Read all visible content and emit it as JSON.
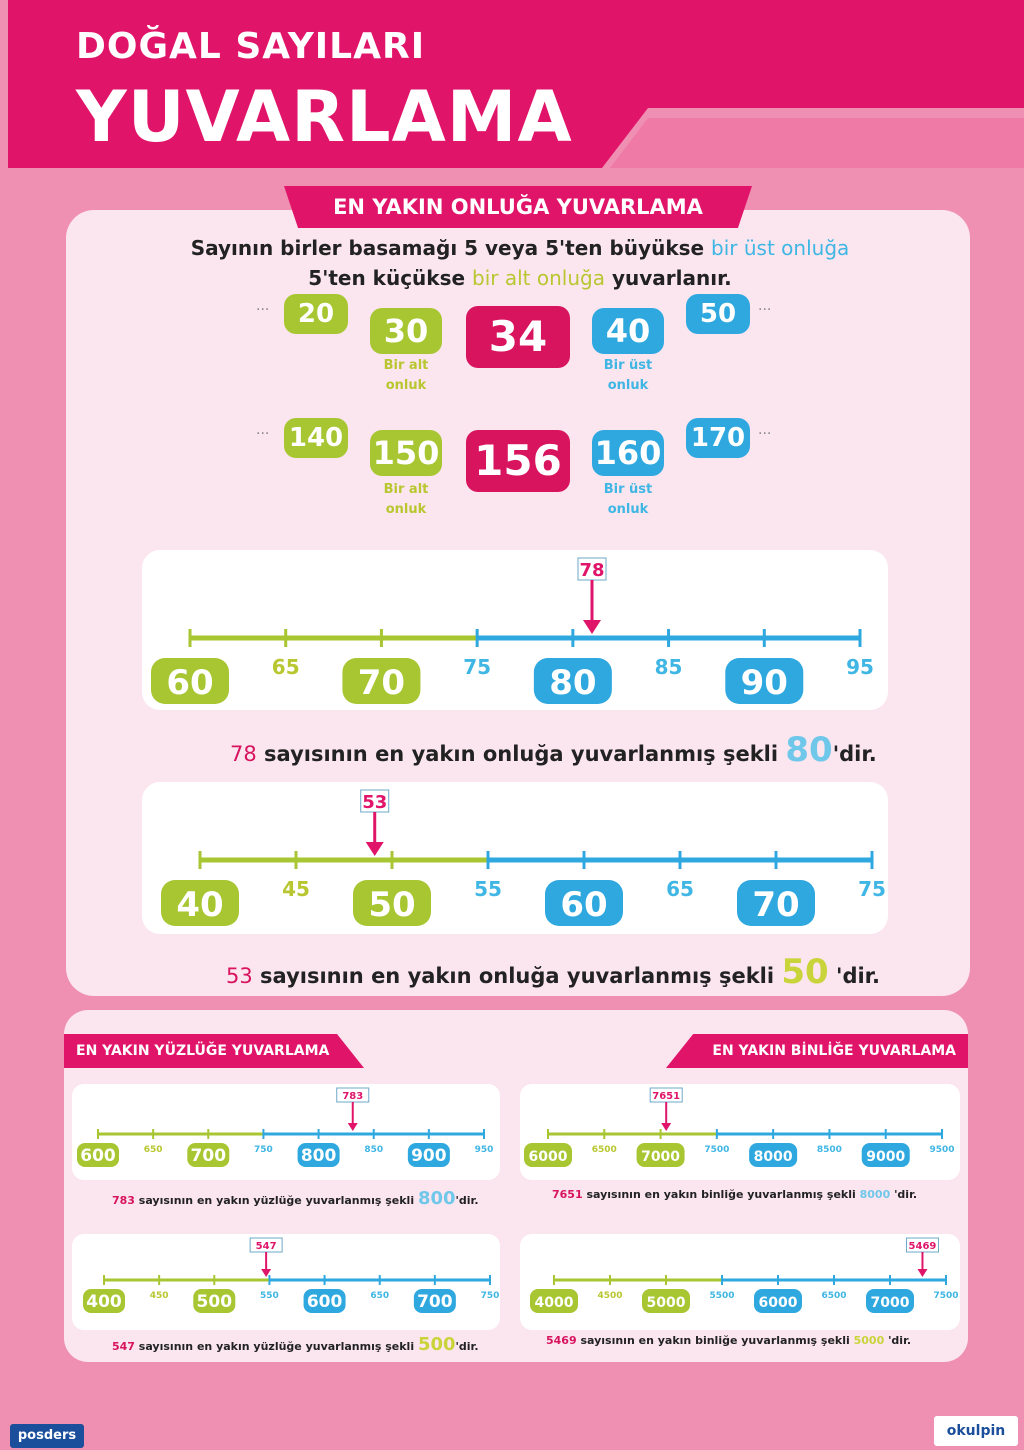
{
  "header": {
    "subtitle": "DOĞAL SAYILARI",
    "title": "YUVARLAMA",
    "colors": {
      "magenta": "#e0156a",
      "green": "#a7c631",
      "blue": "#2fa8df",
      "panel": "#fbe6ef",
      "background": "#ef8fb2"
    }
  },
  "tens": {
    "ribbon": "EN YAKIN ONLUĞA YUVARLAMA",
    "rule_line1_a": "Sayının birler basamağı 5 veya 5'ten büyükse ",
    "rule_line1_b": "bir üst onluğa",
    "rule_line2_a": "5'ten küçükse ",
    "rule_line2_b": "bir alt onluğa",
    "rule_line2_c": " yuvarlanır.",
    "ellipsis": "...",
    "lower_label_1": "Bir alt",
    "lower_label_2": "onluk",
    "upper_label_1": "Bir üst",
    "upper_label_2": "onluk",
    "example1": {
      "far_low": "20",
      "low": "30",
      "num": "34",
      "high": "40",
      "far_high": "50"
    },
    "example2": {
      "far_low": "140",
      "low": "150",
      "num": "156",
      "high": "160",
      "far_high": "170"
    },
    "line1": {
      "marker": "78",
      "ticks": [
        "60",
        "65",
        "70",
        "75",
        "80",
        "85",
        "90",
        "95"
      ],
      "sentence_num": "78",
      "sentence_mid": " sayısının en yakın onluğa yuvarlanmış şekli ",
      "sentence_result": "80",
      "sentence_end": "'dir."
    },
    "line2": {
      "marker": "53",
      "ticks": [
        "40",
        "45",
        "50",
        "55",
        "60",
        "65",
        "70",
        "75"
      ],
      "sentence_num": "53",
      "sentence_mid": " sayısının en yakın onluğa yuvarlanmış şekli ",
      "sentence_result": "50",
      "sentence_end": " 'dir."
    }
  },
  "hundreds": {
    "ribbon": "EN YAKIN YÜZLÜĞE YUVARLAMA",
    "line1": {
      "marker": "783",
      "ticks": [
        "600",
        "650",
        "700",
        "750",
        "800",
        "850",
        "900",
        "950"
      ],
      "sentence_num": "783",
      "sentence_mid": " sayısının en yakın yüzlüğe yuvarlanmış şekli ",
      "sentence_result": "800",
      "sentence_end": "'dir."
    },
    "line2": {
      "marker": "547",
      "ticks": [
        "400",
        "450",
        "500",
        "550",
        "600",
        "650",
        "700",
        "750"
      ],
      "sentence_num": "547",
      "sentence_mid": " sayısının en yakın yüzlüğe yuvarlanmış şekli ",
      "sentence_result": "500",
      "sentence_end": "'dir."
    }
  },
  "thousands": {
    "ribbon": "EN YAKIN BİNLİĞE YUVARLAMA",
    "line1": {
      "marker": "7651",
      "ticks": [
        "6000",
        "6500",
        "7000",
        "7500",
        "8000",
        "8500",
        "9000",
        "9500"
      ],
      "sentence_num": "7651",
      "sentence_mid": " sayısının en yakın binliğe yuvarlanmış şekli ",
      "sentence_result": "8000",
      "sentence_end": " 'dir."
    },
    "line2": {
      "marker": "5469",
      "ticks": [
        "4000",
        "4500",
        "5000",
        "5500",
        "6000",
        "6500",
        "7000",
        "7500"
      ],
      "sentence_num": "5469",
      "sentence_mid": " sayısının en yakın binliğe yuvarlanmış şekli ",
      "sentence_result": "5000",
      "sentence_end": " 'dir."
    }
  },
  "footer": {
    "left_logo": "posders",
    "right_logo": "okulpin"
  }
}
